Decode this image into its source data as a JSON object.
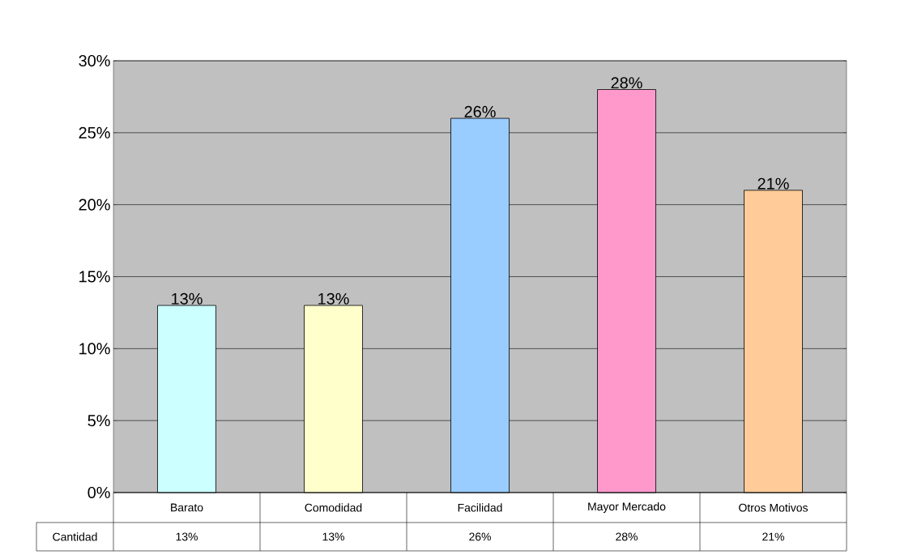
{
  "chart_data": {
    "type": "bar",
    "categories": [
      "Barato",
      "Comodidad",
      "Facilidad",
      "Mayor Mercado",
      "Otros Motivos"
    ],
    "series": [
      {
        "name": "Cantidad",
        "values": [
          13,
          13,
          26,
          28,
          21
        ],
        "value_labels": [
          "13%",
          "13%",
          "26%",
          "28%",
          "21%"
        ]
      }
    ],
    "colors": [
      "#ccffff",
      "#ffffcc",
      "#99ccff",
      "#ff99cc",
      "#ffcc99"
    ],
    "ylim": [
      0,
      30
    ],
    "yticks": [
      {
        "value": 0,
        "label": "0%"
      },
      {
        "value": 5,
        "label": "5%"
      },
      {
        "value": 10,
        "label": "10%"
      },
      {
        "value": 15,
        "label": "15%"
      },
      {
        "value": 20,
        "label": "20%"
      },
      {
        "value": 25,
        "label": "25%"
      },
      {
        "value": 30,
        "label": "30%"
      }
    ],
    "grid": "y"
  }
}
